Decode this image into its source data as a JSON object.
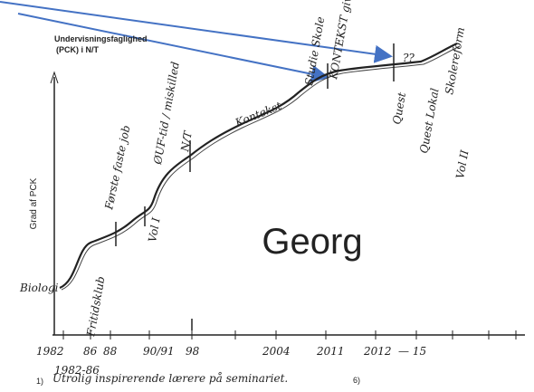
{
  "header": {
    "title_line1": "Undervisningsfaglighed",
    "title_line2": "(PCK) i N/T"
  },
  "y_axis_label": "Grad af PCK",
  "name": "Georg",
  "annotations": [
    "Biologi",
    "Fritidsklub",
    "Første faste job",
    "Vol I",
    "ØUF-tid / miskilled",
    "N/T",
    "Kontekst",
    "Studie Skole",
    "KONTEKST gives bort",
    "??",
    "Quest",
    "Quest Lokal",
    "Vol II",
    "Skolereform"
  ],
  "x_labels": [
    "1982",
    "86",
    "88",
    "90/91",
    "98",
    "2004",
    "2011",
    "2012",
    "— 15"
  ],
  "footnote": {
    "marker": "1)",
    "period": "1982-86",
    "text": "Utrolig inspirerende lærere på seminariet.",
    "ref": "6)"
  }
}
